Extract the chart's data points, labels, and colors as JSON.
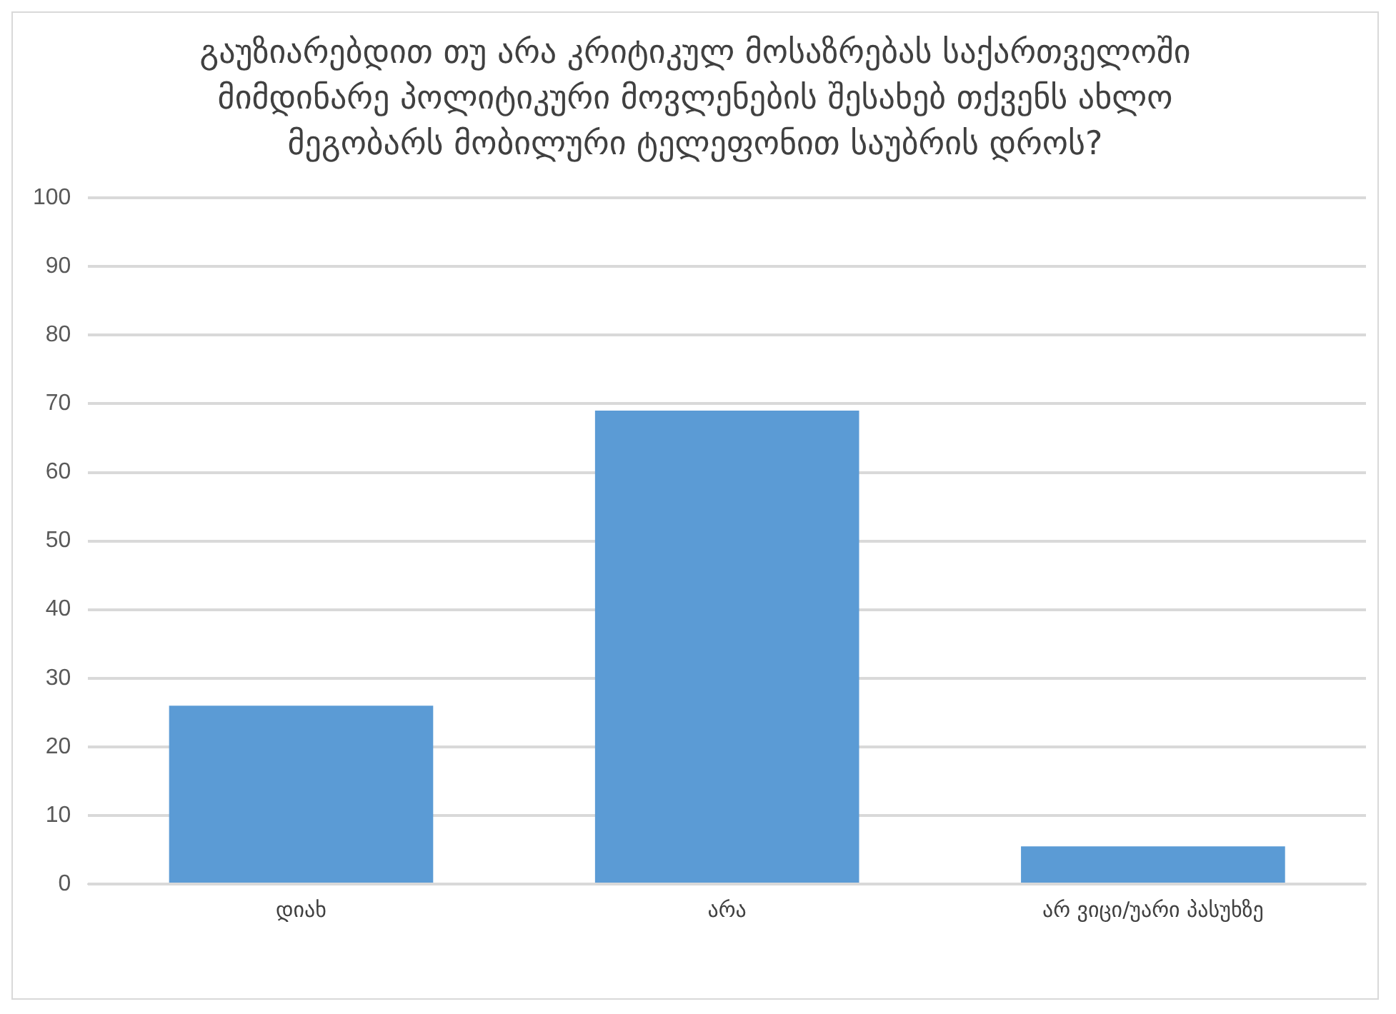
{
  "chart_data": {
    "type": "bar",
    "title": "გაუზიარებდით თუ არა კრიტიკულ მოსაზრებას საქართველოში მიმდინარე პოლიტიკური მოვლენების შესახებ თქვენს ახლო მეგობარს მობილური ტელეფონით საუბრის დროს?",
    "categories": [
      "დიახ",
      "არა",
      "არ ვიცი/უარი პასუხზე"
    ],
    "values": [
      26,
      69,
      5.5
    ],
    "color": "#5b9bd5",
    "ylim": [
      0,
      100
    ],
    "yticks": [
      0,
      10,
      20,
      30,
      40,
      50,
      60,
      70,
      80,
      90,
      100
    ],
    "grid": "y"
  }
}
